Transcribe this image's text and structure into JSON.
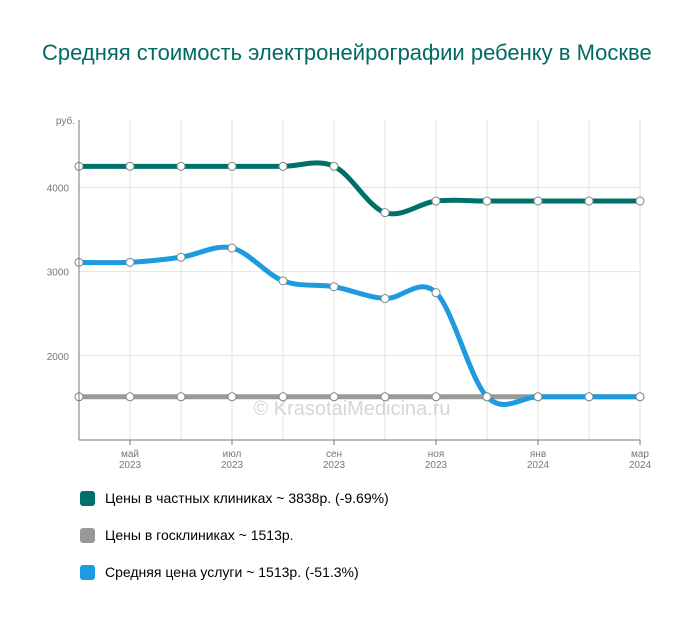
{
  "title": "Средняя стоимость электронейрографии ребенку в Москве",
  "watermark": "© KrasotaiMedicina.ru",
  "chart_data": {
    "type": "line",
    "yunit": "руб.",
    "ylim": [
      1000,
      4800
    ],
    "yticks": [
      2000,
      3000,
      4000
    ],
    "grid": true,
    "legend_position": "bottom",
    "x": [
      "2023-04",
      "2023-05",
      "2023-06",
      "2023-07",
      "2023-08",
      "2023-09",
      "2023-10",
      "2023-11",
      "2023-12",
      "2024-01",
      "2024-02",
      "2024-03"
    ],
    "xticks": [
      {
        "month": "май",
        "year": "2023",
        "x": "2023-05"
      },
      {
        "month": "июл",
        "year": "2023",
        "x": "2023-07"
      },
      {
        "month": "сен",
        "year": "2023",
        "x": "2023-09"
      },
      {
        "month": "ноя",
        "year": "2023",
        "x": "2023-11"
      },
      {
        "month": "янв",
        "year": "2024",
        "x": "2024-01"
      },
      {
        "month": "мар",
        "year": "2024",
        "x": "2024-03"
      }
    ],
    "series": [
      {
        "name": "Цены в частных клиниках ~ 3838р. (-9.69%)",
        "color": "#00706a",
        "values": [
          4250,
          4250,
          4250,
          4250,
          4250,
          4250,
          3700,
          3838,
          3838,
          3838,
          3838,
          3838
        ]
      },
      {
        "name": "Цены в госклиниках ~ 1513р.",
        "color": "#999999",
        "values": [
          1513,
          1513,
          1513,
          1513,
          1513,
          1513,
          1513,
          1513,
          1513,
          1513,
          1513,
          1513
        ]
      },
      {
        "name": "Средняя цена услуги ~ 1513р. (-51.3%)",
        "color": "#1e9be0",
        "values": [
          3110,
          3110,
          3170,
          3280,
          2890,
          2820,
          2680,
          2750,
          1513,
          1513,
          1513,
          1513
        ]
      }
    ]
  }
}
